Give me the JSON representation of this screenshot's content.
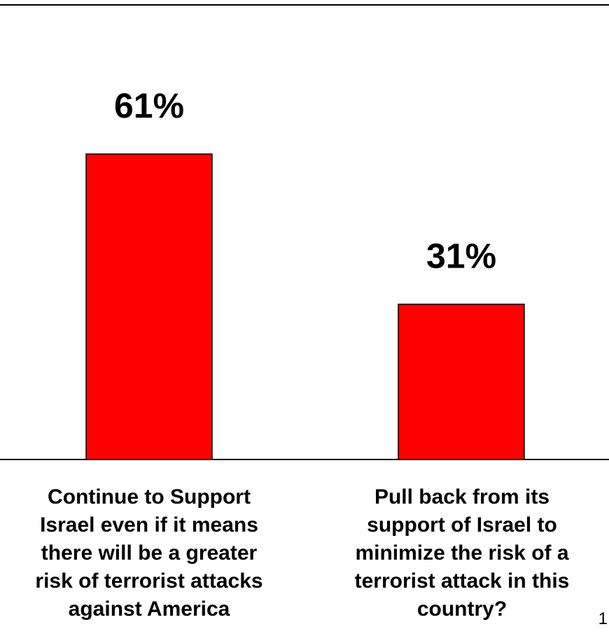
{
  "chart_data": {
    "type": "bar",
    "categories": [
      "Continue to Support Israel even if it means there will be a greater risk of terrorist attacks against America",
      "Pull back from its support of Israel to minimize the risk of a terrorist attack in this country?"
    ],
    "category_lines": [
      [
        "Continue to Support",
        "Israel even if it means",
        "there will be a greater",
        "risk of terrorist attacks",
        "against America"
      ],
      [
        "Pull back from its",
        "support of Israel to",
        "minimize the risk of a",
        "terrorist attack in this",
        "country?"
      ]
    ],
    "values": [
      61,
      31
    ],
    "data_labels": [
      "61%",
      "31%"
    ],
    "ylim": [
      0,
      100
    ],
    "grid": false,
    "bar_color": "#ff0000"
  },
  "page_number": "1"
}
